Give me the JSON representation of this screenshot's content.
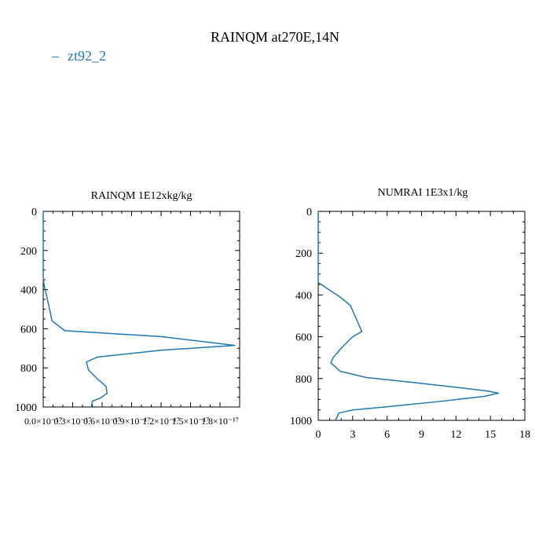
{
  "figure": {
    "title": "RAINQM at270E,14N",
    "legend": {
      "label": "zt92_2",
      "marker": "–",
      "color": "#1f77b4"
    }
  },
  "chart_data": [
    {
      "type": "line",
      "title": "RAINQM  1E12xkg/kg",
      "xlabel": "",
      "ylabel": "",
      "xlim": [
        0,
        2e-17
      ],
      "ylim": [
        1000,
        0
      ],
      "y_inverted": true,
      "grid": false,
      "xticks": [
        0,
        3e-18,
        6e-18,
        9e-18,
        1.2e-17,
        1.5e-17,
        1.8e-17
      ],
      "xtick_labels": [
        "0.0×10⁻¹⁷",
        "0.3×10⁻¹⁷",
        "0.6×10⁻¹⁷",
        "0.9×10⁻¹⁷",
        "1.2×10⁻¹⁷",
        "1.5×10⁻¹⁷",
        "1.8×10⁻¹⁷"
      ],
      "yticks": [
        0,
        200,
        400,
        600,
        800,
        1000
      ],
      "ytick_labels": [
        "0",
        "200",
        "400",
        "600",
        "800",
        "1000"
      ],
      "series": [
        {
          "name": "zt92_2",
          "color": "#1f77b4",
          "x": [
            0,
            0,
            1e-19,
            3e-19,
            6e-19,
            9e-19,
            2.2e-18,
            1.2e-17,
            1.95e-17,
            1.2e-17,
            5.5e-18,
            4.4e-18,
            4.6e-18,
            5.6e-18,
            6.4e-18,
            6.5e-18,
            5.8e-18,
            5e-18,
            4.9e-18
          ],
          "y": [
            0,
            340,
            380,
            420,
            490,
            560,
            610,
            640,
            685,
            710,
            745,
            770,
            810,
            860,
            895,
            930,
            955,
            970,
            1000
          ]
        }
      ]
    },
    {
      "type": "line",
      "title": "NUMRAI  1E3x1/kg",
      "xlabel": "",
      "ylabel": "",
      "xlim": [
        0,
        18
      ],
      "ylim": [
        1000,
        0
      ],
      "y_inverted": true,
      "grid": false,
      "xticks": [
        0,
        3,
        6,
        9,
        12,
        15,
        18
      ],
      "xtick_labels": [
        "0",
        "3",
        "6",
        "9",
        "12",
        "15",
        "18"
      ],
      "yticks": [
        0,
        200,
        400,
        600,
        800,
        1000
      ],
      "ytick_labels": [
        "0",
        "200",
        "400",
        "600",
        "800",
        "1000"
      ],
      "series": [
        {
          "name": "zt92_2",
          "color": "#1f77b4",
          "x": [
            0,
            0,
            0.8,
            1.9,
            2.8,
            3.2,
            3.8,
            3.0,
            2.0,
            1.3,
            1.1,
            1.9,
            4.2,
            8.5,
            12.5,
            14.8,
            15.7,
            14.5,
            10.5,
            6.0,
            3.0,
            1.8,
            1.5
          ],
          "y": [
            0,
            340,
            370,
            410,
            450,
            500,
            575,
            600,
            655,
            700,
            725,
            765,
            795,
            820,
            845,
            860,
            870,
            885,
            910,
            935,
            950,
            965,
            1000
          ]
        }
      ]
    }
  ]
}
